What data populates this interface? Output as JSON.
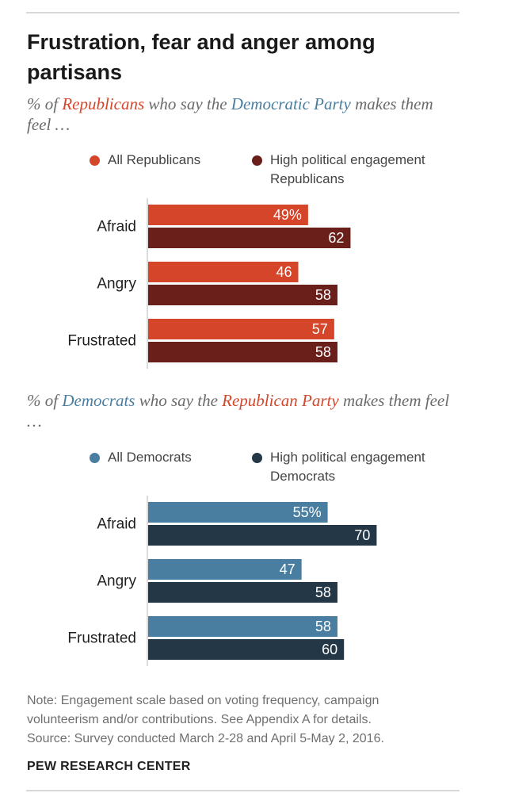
{
  "title": "Frustration, fear and anger among partisans",
  "colors": {
    "rep_all": "#d4452a",
    "rep_high": "#6a1f1a",
    "dem_all": "#4a7ea1",
    "dem_high": "#233747"
  },
  "republicans": {
    "subtitle": {
      "part1": "% of ",
      "group": "Republicans",
      "part2": " who say the ",
      "party": "Democratic Party",
      "part3": " makes them feel …"
    },
    "legend": {
      "all": "All Republicans",
      "high_line1": "High political engagement",
      "high_line2": "Republicans"
    }
  },
  "democrats": {
    "subtitle": {
      "part1": "% of ",
      "group": "Democrats",
      "part2": " who say the ",
      "party": "Republican Party",
      "part3": " makes them feel …"
    },
    "legend": {
      "all": "All Democrats",
      "high_line1": "High political engagement",
      "high_line2": "Democrats"
    }
  },
  "chart_data": [
    {
      "type": "bar",
      "orientation": "horizontal",
      "title": "% of Republicans who say the Democratic Party makes them feel …",
      "categories": [
        "Afraid",
        "Angry",
        "Frustrated"
      ],
      "series": [
        {
          "name": "All Republicans",
          "values": [
            49,
            46,
            57
          ],
          "labels": [
            "49%",
            "46",
            "57"
          ]
        },
        {
          "name": "High political engagement Republicans",
          "values": [
            62,
            58,
            58
          ],
          "labels": [
            "62",
            "58",
            "58"
          ]
        }
      ],
      "legend": "top"
    },
    {
      "type": "bar",
      "orientation": "horizontal",
      "title": "% of Democrats who say the Republican Party makes them feel …",
      "categories": [
        "Afraid",
        "Angry",
        "Frustrated"
      ],
      "series": [
        {
          "name": "All Democrats",
          "values": [
            55,
            47,
            58
          ],
          "labels": [
            "55%",
            "47",
            "58"
          ]
        },
        {
          "name": "High political engagement Democrats",
          "values": [
            70,
            58,
            60
          ],
          "labels": [
            "70",
            "58",
            "60"
          ]
        }
      ],
      "legend": "top"
    }
  ],
  "note": {
    "line1": "Note: Engagement scale based on voting frequency, campaign",
    "line2": "volunteerism and/or contributions. See Appendix A for details.",
    "source": "Source: Survey conducted March 2-28 and April 5-May 2, 2016."
  },
  "brand": "PEW RESEARCH CENTER"
}
